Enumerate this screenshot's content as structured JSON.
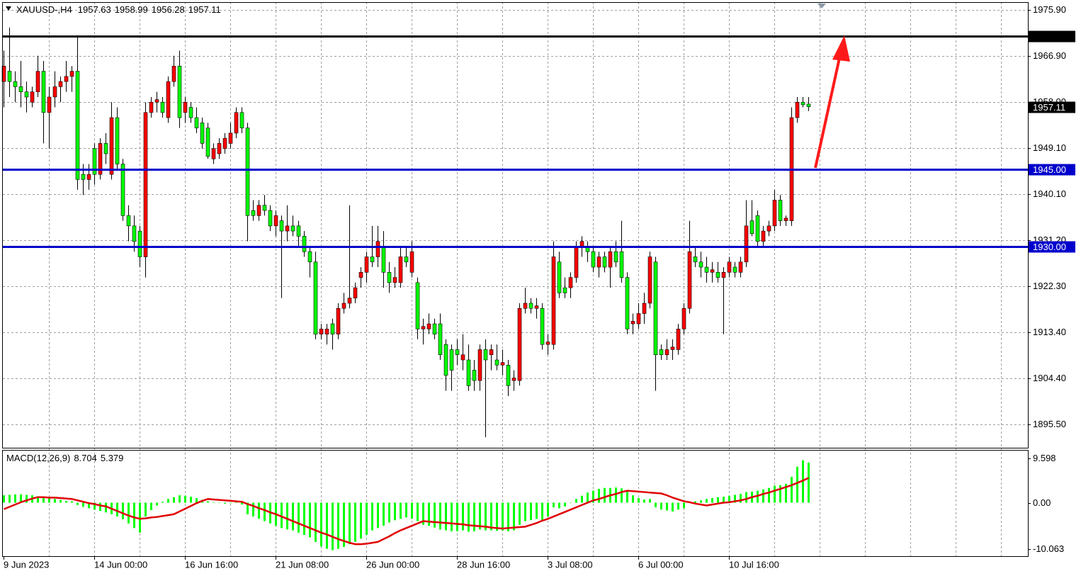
{
  "chart_data": [
    {
      "type": "candlestick",
      "symbol": "XAUUSD-,H4",
      "categories": [
        "9 Jun 2023",
        null,
        null,
        null,
        null,
        null,
        null,
        null,
        null,
        null,
        null,
        null,
        null,
        null,
        null,
        null,
        "14 Jun 00:00",
        null,
        null,
        null,
        null,
        null,
        null,
        null,
        null,
        null,
        null,
        null,
        null,
        null,
        null,
        null,
        "16 Jun 16:00",
        null,
        null,
        null,
        null,
        null,
        null,
        null,
        null,
        null,
        null,
        null,
        null,
        null,
        null,
        null,
        "21 Jun 08:00",
        null,
        null,
        null,
        null,
        null,
        null,
        null,
        null,
        null,
        null,
        null,
        null,
        null,
        null,
        null,
        "26 Jun 00:00",
        null,
        null,
        null,
        null,
        null,
        null,
        null,
        null,
        null,
        null,
        null,
        null,
        null,
        null,
        null,
        "28 Jun 16:00",
        null,
        null,
        null,
        null,
        null,
        null,
        null,
        null,
        null,
        null,
        null,
        null,
        null,
        null,
        null,
        "3 Jul 08:00",
        null,
        null,
        null,
        null,
        null,
        null,
        null,
        null,
        null,
        null,
        null,
        null,
        null,
        null,
        null,
        "6 Jul 00:00",
        null,
        null,
        null,
        null,
        null,
        null,
        null,
        null,
        null,
        null,
        null,
        null,
        null,
        null,
        null,
        "10 Jul 16:00",
        null,
        null,
        null,
        null,
        null,
        null,
        null,
        null,
        null,
        null,
        null,
        null,
        null,
        null
      ],
      "ohlc": [
        [
          1962,
          1968,
          1957,
          1965
        ],
        [
          1964,
          1972.5,
          1959,
          1962
        ],
        [
          1962,
          1964,
          1958,
          1961
        ],
        [
          1961,
          1966,
          1957,
          1960
        ],
        [
          1960,
          1962,
          1956,
          1959
        ],
        [
          1958,
          1961,
          1957,
          1960
        ],
        [
          1960,
          1967,
          1959,
          1964
        ],
        [
          1964,
          1966,
          1950,
          1956
        ],
        [
          1956,
          1961,
          1949,
          1959
        ],
        [
          1959,
          1964,
          1957,
          1961
        ],
        [
          1961,
          1963,
          1958,
          1962
        ],
        [
          1962,
          1966,
          1960,
          1963
        ],
        [
          1963,
          1965,
          1960,
          1964
        ],
        [
          1964,
          1971,
          1941,
          1943
        ],
        [
          1944,
          1946,
          1940,
          1943
        ],
        [
          1943,
          1946,
          1941,
          1944
        ],
        [
          1949,
          1950,
          1942,
          1944
        ],
        [
          1944,
          1951,
          1943,
          1950
        ],
        [
          1950,
          1952,
          1946,
          1948
        ],
        [
          1944,
          1958,
          1943,
          1955
        ],
        [
          1955,
          1957,
          1945,
          1946
        ],
        [
          1946,
          1947,
          1935,
          1936
        ],
        [
          1936,
          1938,
          1931,
          1934
        ],
        [
          1934,
          1936,
          1929,
          1931
        ],
        [
          1933,
          1934,
          1926,
          1928
        ],
        [
          1928,
          1958,
          1924,
          1956
        ],
        [
          1956,
          1959,
          1955,
          1958
        ],
        [
          1958,
          1960,
          1956,
          1958.5
        ],
        [
          1958,
          1959,
          1955,
          1956
        ],
        [
          1955,
          1963,
          1954,
          1962
        ],
        [
          1962,
          1967,
          1961,
          1965
        ],
        [
          1965,
          1968,
          1953,
          1955
        ],
        [
          1956,
          1959,
          1954,
          1958
        ],
        [
          1957,
          1958,
          1954,
          1955
        ],
        [
          1955,
          1957,
          1952,
          1953
        ],
        [
          1954,
          1955,
          1949,
          1950
        ],
        [
          1953,
          1954,
          1947,
          1947.5
        ],
        [
          1947,
          1950,
          1946,
          1949
        ],
        [
          1948,
          1951,
          1947,
          1950
        ],
        [
          1949,
          1952,
          1948,
          1951
        ],
        [
          1950,
          1954,
          1949,
          1952
        ],
        [
          1952,
          1957,
          1951,
          1956
        ],
        [
          1956,
          1957,
          1952,
          1953
        ],
        [
          1953,
          1954,
          1931,
          1936
        ],
        [
          1937,
          1939,
          1935,
          1936
        ],
        [
          1936,
          1939,
          1935,
          1938
        ],
        [
          1938,
          1940,
          1936,
          1937
        ],
        [
          1937,
          1938,
          1933,
          1934
        ],
        [
          1934,
          1937,
          1932,
          1936
        ],
        [
          1935,
          1936,
          1920,
          1933
        ],
        [
          1933,
          1938,
          1931,
          1934
        ],
        [
          1934,
          1936,
          1932,
          1933
        ],
        [
          1934,
          1935,
          1930,
          1932
        ],
        [
          1932,
          1933,
          1928,
          1929
        ],
        [
          1929,
          1930,
          1924,
          1927
        ],
        [
          1927,
          1929,
          1912,
          1913
        ],
        [
          1913,
          1915,
          1912,
          1914
        ],
        [
          1913,
          1915,
          1911,
          1914
        ],
        [
          1915,
          1916,
          1910,
          1913
        ],
        [
          1913,
          1919,
          1912,
          1918
        ],
        [
          1918,
          1921,
          1917,
          1919
        ],
        [
          1919,
          1938,
          1918,
          1920
        ],
        [
          1920,
          1923,
          1919,
          1922
        ],
        [
          1924,
          1926,
          1922,
          1925
        ],
        [
          1925,
          1929,
          1923,
          1928
        ],
        [
          1928,
          1934,
          1926,
          1927
        ],
        [
          1928,
          1934,
          1926,
          1931
        ],
        [
          1930,
          1933,
          1922,
          1925
        ],
        [
          1925,
          1927,
          1921,
          1923
        ],
        [
          1923,
          1926,
          1922,
          1924
        ],
        [
          1923,
          1930,
          1922,
          1928
        ],
        [
          1928,
          1930,
          1926,
          1927
        ],
        [
          1925,
          1931,
          1924,
          1929
        ],
        [
          1923,
          1924,
          1912,
          1914
        ],
        [
          1914,
          1916,
          1911,
          1914.5
        ],
        [
          1914,
          1917,
          1913,
          1915
        ],
        [
          1915,
          1916,
          1912,
          1913
        ],
        [
          1915,
          1917,
          1908,
          1909
        ],
        [
          1911,
          1912,
          1902,
          1905
        ],
        [
          1910,
          1911,
          1902,
          1906
        ],
        [
          1910,
          1912,
          1907,
          1909
        ],
        [
          1908,
          1913,
          1906,
          1909
        ],
        [
          1908,
          1911,
          1902,
          1903
        ],
        [
          1906,
          1908,
          1902,
          1904
        ],
        [
          1904,
          1911,
          1902,
          1910
        ],
        [
          1910,
          1912,
          1893,
          1908
        ],
        [
          1909,
          1911,
          1906,
          1910
        ],
        [
          1908,
          1911,
          1906,
          1907
        ],
        [
          1907,
          1910,
          1905,
          1907.5
        ],
        [
          1907,
          1908,
          1901,
          1903
        ],
        [
          1904,
          1906,
          1902,
          1904.5
        ],
        [
          1904,
          1919,
          1903,
          1918
        ],
        [
          1918,
          1922,
          1917,
          1919
        ],
        [
          1919,
          1920,
          1917,
          1918
        ],
        [
          1918,
          1920,
          1916,
          1918.5
        ],
        [
          1918,
          1919,
          1910,
          1911
        ],
        [
          1911,
          1913,
          1909,
          1911.5
        ],
        [
          1911,
          1931,
          1910,
          1928
        ],
        [
          1927,
          1929,
          1920,
          1921
        ],
        [
          1922,
          1924,
          1920,
          1921
        ],
        [
          1922,
          1925,
          1920,
          1924
        ],
        [
          1924,
          1931,
          1923,
          1930
        ],
        [
          1930,
          1932,
          1928,
          1931
        ],
        [
          1930,
          1931,
          1927,
          1929
        ],
        [
          1929,
          1930,
          1925,
          1926
        ],
        [
          1926,
          1929,
          1924,
          1928
        ],
        [
          1928,
          1929,
          1925,
          1926
        ],
        [
          1926,
          1930,
          1922,
          1929
        ],
        [
          1929,
          1931,
          1926,
          1927
        ],
        [
          1929,
          1935,
          1923,
          1924
        ],
        [
          1924,
          1925,
          1913,
          1914
        ],
        [
          1915,
          1917,
          1913,
          1915.5
        ],
        [
          1915,
          1919,
          1914,
          1917
        ],
        [
          1917,
          1921,
          1915,
          1919
        ],
        [
          1919,
          1929,
          1918,
          1928
        ],
        [
          1927,
          1928,
          1902,
          1909
        ],
        [
          1910,
          1911,
          1908,
          1909
        ],
        [
          1909,
          1912,
          1908,
          1910
        ],
        [
          1910,
          1912,
          1908,
          1910.5
        ],
        [
          1910,
          1915,
          1909,
          1914
        ],
        [
          1914,
          1919,
          1913,
          1918
        ],
        [
          1918,
          1935,
          1917,
          1929
        ],
        [
          1928,
          1930,
          1926,
          1927
        ],
        [
          1927,
          1929,
          1924,
          1926
        ],
        [
          1926,
          1928,
          1923,
          1925
        ],
        [
          1925,
          1927,
          1923,
          1925.5
        ],
        [
          1925,
          1927,
          1923,
          1924
        ],
        [
          1924,
          1926,
          1913,
          1925
        ],
        [
          1925,
          1928,
          1924,
          1927
        ],
        [
          1926,
          1927,
          1924,
          1925
        ],
        [
          1925,
          1928,
          1924,
          1927
        ],
        [
          1927,
          1939,
          1926,
          1934
        ],
        [
          1935,
          1939,
          1932,
          1932.5
        ],
        [
          1936,
          1937,
          1930,
          1931
        ],
        [
          1931,
          1934,
          1930,
          1933
        ],
        [
          1933,
          1935,
          1932,
          1934
        ],
        [
          1934,
          1941,
          1933,
          1939
        ],
        [
          1939,
          1940,
          1934,
          1935
        ],
        [
          1935,
          1936,
          1934,
          1935.5
        ],
        [
          1935,
          1957,
          1934,
          1955
        ],
        [
          1955,
          1959,
          1954,
          1958
        ],
        [
          1958,
          1959,
          1957,
          1957.5
        ],
        [
          1957.63,
          1958.99,
          1956.28,
          1957.11
        ]
      ],
      "up_color": "#ff0000",
      "down_color": "#00ff00",
      "ylim": [
        1890.96,
        1977.41
      ],
      "yticks": [
        {
          "value": 1975.9,
          "label": "1975.90"
        },
        {
          "value": 1966.9,
          "label": "1966.90"
        },
        {
          "value": 1958,
          "label": "1958.00"
        },
        {
          "value": 1949.1,
          "label": "1949.10"
        },
        {
          "value": 1940.1,
          "label": "1940.10"
        },
        {
          "value": 1931.2,
          "label": "1931.20"
        },
        {
          "value": 1922.3,
          "label": "1922.30"
        },
        {
          "value": 1913.4,
          "label": "1913.40"
        },
        {
          "value": 1904.4,
          "label": "1904.40"
        },
        {
          "value": 1895.5,
          "label": "1895.50"
        }
      ],
      "levels": [
        {
          "value": 1970.76,
          "color": "#000000"
        },
        {
          "value": 1945,
          "label": "1945.00",
          "color": "#0000cc"
        },
        {
          "value": 1930,
          "label": "1930.00",
          "color": "#0000cc"
        }
      ],
      "grid": true
    },
    {
      "type": "macd",
      "title": "MACD(12,26,9)",
      "histogram_color": "#00ff00",
      "signal_color": "#e00000",
      "histogram": [
        1.6,
        1.7,
        1.8,
        1.8,
        1.7,
        1.6,
        1.4,
        1.2,
        1.0,
        0.8,
        0.6,
        0.4,
        0.3,
        -0.5,
        -0.9,
        -1.2,
        -1.5,
        -1.8,
        -2.1,
        -2.5,
        -3.0,
        -3.6,
        -4.5,
        -5.5,
        -6.5,
        -3.0,
        -1.6,
        -0.6,
        0.2,
        0.8,
        1.2,
        1.6,
        1.5,
        1.3,
        1.0,
        0.6,
        0.3,
        0.1,
        0.0,
        -0.2,
        -0.1,
        0.2,
        -0.4,
        -2.5,
        -3.0,
        -3.5,
        -4.0,
        -4.5,
        -5.0,
        -5.5,
        -5.8,
        -6.0,
        -6.5,
        -7.0,
        -7.5,
        -8.5,
        -9.5,
        -10.0,
        -10.3,
        -10.0,
        -9.6,
        -9.0,
        -8.5,
        -7.8,
        -7.0,
        -6.0,
        -5.5,
        -5.0,
        -4.3,
        -3.8,
        -3.5,
        -3.2,
        -3.5,
        -4.0,
        -4.8,
        -5.0,
        -5.4,
        -5.8,
        -6.0,
        -6.2,
        -6.2,
        -6.0,
        -6.3,
        -6.2,
        -5.8,
        -6.0,
        -6.0,
        -6.1,
        -6.0,
        -6.2,
        -6.0,
        -4.8,
        -4.0,
        -3.8,
        -3.5,
        -3.7,
        -3.0,
        -1.0,
        -1.2,
        -0.8,
        0.0,
        0.8,
        1.5,
        2.2,
        2.6,
        3.0,
        3.2,
        3.2,
        3.3,
        3.1,
        2.7,
        1.6,
        1.0,
        0.7,
        0.8,
        -1.0,
        -1.5,
        -1.7,
        -1.9,
        -1.5,
        -1.2,
        0.2,
        0.3,
        0.5,
        0.8,
        1.0,
        1.2,
        1.3,
        1.5,
        1.7,
        1.9,
        2.3,
        2.4,
        2.6,
        2.9,
        3.2,
        3.7,
        3.8,
        4.1,
        5.6,
        7.8,
        9.2,
        8.704
      ],
      "signal": [
        -1.4,
        -0.9,
        -0.4,
        0.1,
        0.5,
        0.9,
        1.2,
        1.2,
        1.1,
        1.1,
        1.0,
        0.9,
        0.8,
        0.5,
        0.2,
        -0.1,
        -0.3,
        -0.6,
        -0.8,
        -1.3,
        -1.8,
        -2.3,
        -2.8,
        -3.2,
        -3.5,
        -3.4,
        -3.2,
        -3.1,
        -2.9,
        -2.7,
        -2.5,
        -1.9,
        -1.3,
        -0.7,
        -0.1,
        0.4,
        0.8,
        0.7,
        0.6,
        0.5,
        0.4,
        0.3,
        0.2,
        -0.3,
        -0.7,
        -1.2,
        -1.6,
        -2.1,
        -2.5,
        -3.0,
        -3.5,
        -4.0,
        -4.5,
        -5.0,
        -5.5,
        -6.0,
        -6.5,
        -6.9,
        -7.4,
        -7.9,
        -8.3,
        -8.7,
        -9.0,
        -9.0,
        -8.9,
        -8.7,
        -8.5,
        -7.9,
        -7.3,
        -6.6,
        -6.0,
        -5.5,
        -5.0,
        -4.5,
        -4.0,
        -4.1,
        -4.2,
        -4.3,
        -4.4,
        -4.5,
        -4.6,
        -4.7,
        -4.9,
        -5.0,
        -5.1,
        -5.2,
        -5.4,
        -5.5,
        -5.6,
        -5.5,
        -5.4,
        -5.3,
        -5.2,
        -4.8,
        -4.4,
        -3.9,
        -3.5,
        -3.0,
        -2.5,
        -2.0,
        -1.5,
        -1.0,
        -0.5,
        0.0,
        0.5,
        0.8,
        1.2,
        1.6,
        1.9,
        2.3,
        2.6,
        2.5,
        2.4,
        2.3,
        2.2,
        2.1,
        2.0,
        1.6,
        1.1,
        0.7,
        0.3,
        0.1,
        -0.2,
        -0.4,
        -0.6,
        -0.4,
        -0.2,
        0.0,
        0.1,
        0.3,
        0.5,
        0.8,
        1.2,
        1.5,
        1.9,
        2.2,
        2.6,
        3.0,
        3.4,
        3.8,
        4.3,
        4.8,
        5.379
      ],
      "ylim": [
        -11.6,
        11.3
      ],
      "yticks": [
        9.598,
        {
          "value": 0,
          "label": "0.00"
        },
        -10.063
      ]
    }
  ]
}
